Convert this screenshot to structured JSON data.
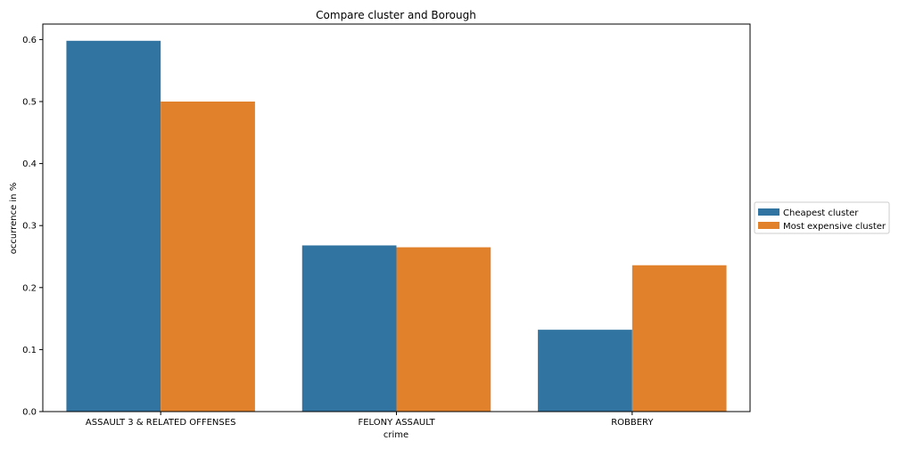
{
  "chart_data": {
    "type": "bar",
    "title": "Compare cluster and Borough",
    "xlabel": "crime",
    "ylabel": "occurrence in %",
    "categories": [
      "ASSAULT 3 & RELATED OFFENSES",
      "FELONY ASSAULT",
      "ROBBERY"
    ],
    "series": [
      {
        "name": "Cheapest cluster",
        "values": [
          0.598,
          0.268,
          0.132
        ],
        "color": "#3274a1"
      },
      {
        "name": "Most expensive cluster",
        "values": [
          0.5,
          0.265,
          0.236
        ],
        "color": "#e1812c"
      }
    ],
    "ylim": [
      0,
      0.625
    ],
    "yticks": [
      0.0,
      0.1,
      0.2,
      0.3,
      0.4,
      0.5,
      0.6
    ],
    "ytick_labels": [
      "0.0",
      "0.1",
      "0.2",
      "0.3",
      "0.4",
      "0.5",
      "0.6"
    ],
    "grid": false,
    "legend_position": "outside-right"
  }
}
